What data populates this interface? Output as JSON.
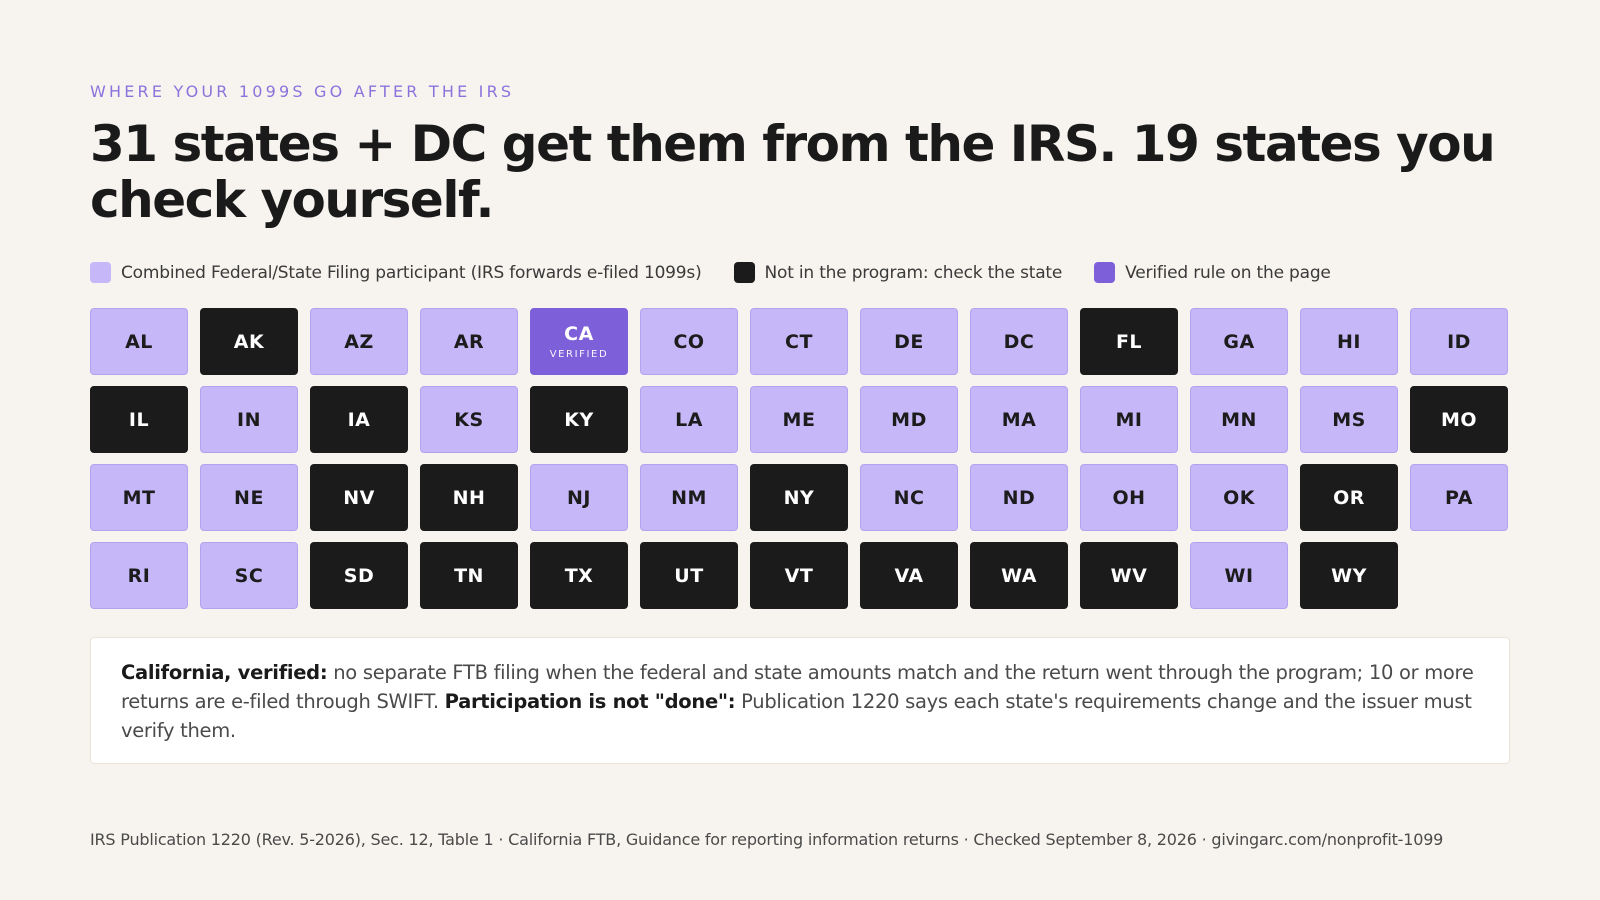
{
  "eyebrow": "WHERE YOUR 1099S GO AFTER THE IRS",
  "headline": "31 states + DC get them from the IRS. 19 states you check yourself.",
  "legend": [
    {
      "key": "cfsf",
      "label": "Combined Federal/State Filing participant (IRS forwards e-filed 1099s)",
      "color": "#c6b7f8"
    },
    {
      "key": "out",
      "label": "Not in the program: check the state",
      "color": "#1b1b1b"
    },
    {
      "key": "verified",
      "label": "Verified rule on the page",
      "color": "#7d5fd9"
    }
  ],
  "states": [
    {
      "code": "AL",
      "status": "cfsf"
    },
    {
      "code": "AK",
      "status": "out"
    },
    {
      "code": "AZ",
      "status": "cfsf"
    },
    {
      "code": "AR",
      "status": "cfsf"
    },
    {
      "code": "CA",
      "status": "verified",
      "sub": "VERIFIED"
    },
    {
      "code": "CO",
      "status": "cfsf"
    },
    {
      "code": "CT",
      "status": "cfsf"
    },
    {
      "code": "DE",
      "status": "cfsf"
    },
    {
      "code": "DC",
      "status": "cfsf"
    },
    {
      "code": "FL",
      "status": "out"
    },
    {
      "code": "GA",
      "status": "cfsf"
    },
    {
      "code": "HI",
      "status": "cfsf"
    },
    {
      "code": "ID",
      "status": "cfsf"
    },
    {
      "code": "IL",
      "status": "out"
    },
    {
      "code": "IN",
      "status": "cfsf"
    },
    {
      "code": "IA",
      "status": "out"
    },
    {
      "code": "KS",
      "status": "cfsf"
    },
    {
      "code": "KY",
      "status": "out"
    },
    {
      "code": "LA",
      "status": "cfsf"
    },
    {
      "code": "ME",
      "status": "cfsf"
    },
    {
      "code": "MD",
      "status": "cfsf"
    },
    {
      "code": "MA",
      "status": "cfsf"
    },
    {
      "code": "MI",
      "status": "cfsf"
    },
    {
      "code": "MN",
      "status": "cfsf"
    },
    {
      "code": "MS",
      "status": "cfsf"
    },
    {
      "code": "MO",
      "status": "out"
    },
    {
      "code": "MT",
      "status": "cfsf"
    },
    {
      "code": "NE",
      "status": "cfsf"
    },
    {
      "code": "NV",
      "status": "out"
    },
    {
      "code": "NH",
      "status": "out"
    },
    {
      "code": "NJ",
      "status": "cfsf"
    },
    {
      "code": "NM",
      "status": "cfsf"
    },
    {
      "code": "NY",
      "status": "out"
    },
    {
      "code": "NC",
      "status": "cfsf"
    },
    {
      "code": "ND",
      "status": "cfsf"
    },
    {
      "code": "OH",
      "status": "cfsf"
    },
    {
      "code": "OK",
      "status": "cfsf"
    },
    {
      "code": "OR",
      "status": "out"
    },
    {
      "code": "PA",
      "status": "cfsf"
    },
    {
      "code": "RI",
      "status": "cfsf"
    },
    {
      "code": "SC",
      "status": "cfsf"
    },
    {
      "code": "SD",
      "status": "out"
    },
    {
      "code": "TN",
      "status": "out"
    },
    {
      "code": "TX",
      "status": "out"
    },
    {
      "code": "UT",
      "status": "out"
    },
    {
      "code": "VT",
      "status": "out"
    },
    {
      "code": "VA",
      "status": "out"
    },
    {
      "code": "WA",
      "status": "out"
    },
    {
      "code": "WV",
      "status": "out"
    },
    {
      "code": "WI",
      "status": "cfsf"
    },
    {
      "code": "WY",
      "status": "out"
    }
  ],
  "note": {
    "lead_bold": "California, verified:",
    "lead_text": " no separate FTB filing when the federal and state amounts match and the return went through the program; 10 or more returns are e-filed through SWIFT. ",
    "second_bold": "Participation is not \"done\":",
    "second_text": " Publication 1220 says each state's requirements change and the issuer must verify them."
  },
  "footer": "IRS Publication 1220 (Rev. 5-2026), Sec. 12, Table 1 · California FTB, Guidance for reporting information returns · Checked September 8, 2026 · givingarc.com/nonprofit-1099"
}
